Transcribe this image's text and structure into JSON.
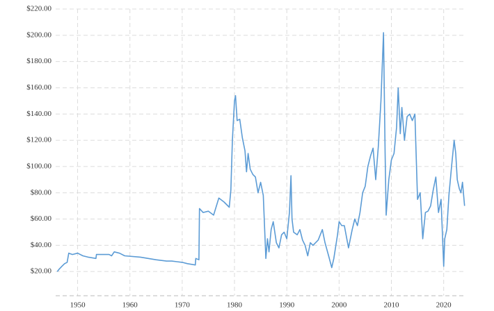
{
  "chart_data": {
    "type": "line",
    "color": "#5b9bd5",
    "grid": true,
    "xlim": [
      1945.8,
      2024.3
    ],
    "ylim": [
      0,
      220
    ],
    "xticks": [
      1950,
      1960,
      1970,
      1980,
      1990,
      2000,
      2010,
      2020
    ],
    "yticks": [
      {
        "value": 20,
        "label": "$20.00"
      },
      {
        "value": 40,
        "label": "$40.00"
      },
      {
        "value": 60,
        "label": "$60.00"
      },
      {
        "value": 80,
        "label": "$80.00"
      },
      {
        "value": 100,
        "label": "$100.00"
      },
      {
        "value": 120,
        "label": "$120.00"
      },
      {
        "value": 140,
        "label": "$140.00"
      },
      {
        "value": 160,
        "label": "$160.00"
      },
      {
        "value": 180,
        "label": "$180.00"
      },
      {
        "value": 200,
        "label": "$200.00"
      },
      {
        "value": 220,
        "label": "$220.00"
      }
    ],
    "x": [
      1946.1,
      1946.5,
      1947,
      1947.5,
      1948,
      1948.3,
      1949,
      1950,
      1951,
      1952,
      1953.5,
      1953.6,
      1956,
      1956.5,
      1957,
      1958,
      1959,
      1962,
      1965,
      1967,
      1968,
      1969,
      1970,
      1971,
      1972.5,
      1972.6,
      1973.2,
      1973.3,
      1974,
      1975,
      1976,
      1977,
      1978,
      1979,
      1979.3,
      1979.6,
      1980,
      1980.2,
      1980.5,
      1981,
      1981.5,
      1982,
      1982.3,
      1982.6,
      1983,
      1983.5,
      1984,
      1984.5,
      1985,
      1985.5,
      1986,
      1986.3,
      1986.6,
      1987,
      1987.4,
      1988,
      1988.5,
      1989,
      1989.5,
      1990,
      1990.5,
      1990.8,
      1991,
      1991.3,
      1992,
      1992.5,
      1993,
      1993.5,
      1994,
      1994.5,
      1995,
      1996,
      1996.8,
      1997.3,
      1998,
      1998.6,
      1999,
      1999.7,
      2000,
      2000.5,
      2001,
      2001.8,
      2002.5,
      2003,
      2003.5,
      2004,
      2004.5,
      2005,
      2005.5,
      2006,
      2006.5,
      2007,
      2007.5,
      2008,
      2008.5,
      2008.8,
      2009,
      2009.5,
      2010,
      2010.5,
      2011,
      2011.3,
      2011.7,
      2012,
      2012.5,
      2013,
      2013.5,
      2014,
      2014.5,
      2015,
      2015.5,
      2016,
      2016.5,
      2017,
      2017.5,
      2018,
      2018.5,
      2019,
      2019.5,
      2020,
      2020.2,
      2020.6,
      2021,
      2021.5,
      2022,
      2022.3,
      2022.6,
      2023,
      2023.3,
      2023.6,
      2024
    ],
    "values": [
      20,
      22,
      24,
      26,
      27,
      34,
      33,
      34,
      32,
      31,
      30,
      33,
      33,
      32,
      35,
      34,
      32,
      31,
      29,
      28,
      28,
      27.5,
      27,
      26,
      25,
      30,
      29,
      68,
      65,
      66,
      63,
      76,
      73,
      69,
      82,
      120,
      150,
      154,
      135,
      136,
      122,
      112,
      96,
      110,
      98,
      94,
      92,
      80,
      88,
      78,
      30,
      45,
      35,
      52,
      58,
      42,
      38,
      48,
      50,
      45,
      65,
      93,
      60,
      50,
      48,
      52,
      44,
      40,
      32,
      42,
      40,
      44,
      52,
      42,
      32,
      23,
      30,
      48,
      58,
      55,
      55,
      38,
      52,
      60,
      55,
      65,
      80,
      85,
      100,
      108,
      114,
      90,
      115,
      150,
      202,
      110,
      63,
      90,
      105,
      110,
      130,
      160,
      125,
      145,
      120,
      138,
      140,
      135,
      140,
      75,
      80,
      45,
      65,
      66,
      70,
      82,
      92,
      65,
      75,
      24,
      45,
      52,
      78,
      100,
      120,
      110,
      90,
      83,
      80,
      88,
      70
    ]
  }
}
